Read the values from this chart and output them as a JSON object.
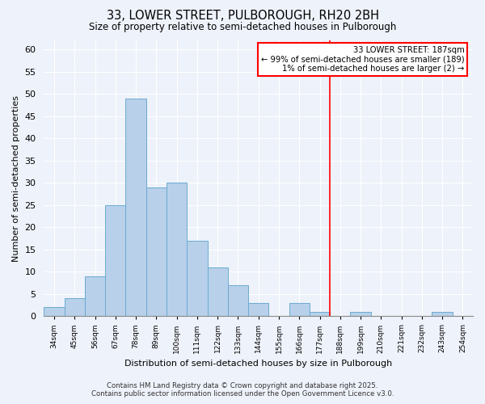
{
  "title": "33, LOWER STREET, PULBOROUGH, RH20 2BH",
  "subtitle": "Size of property relative to semi-detached houses in Pulborough",
  "xlabel": "Distribution of semi-detached houses by size in Pulborough",
  "ylabel": "Number of semi-detached properties",
  "bin_left_edges": [
    34,
    45,
    56,
    67,
    78,
    89,
    100,
    111,
    122,
    133,
    144,
    155,
    166,
    177,
    188,
    199,
    210,
    221,
    232,
    243
  ],
  "bar_heights": [
    2,
    4,
    9,
    25,
    49,
    29,
    30,
    17,
    11,
    7,
    3,
    0,
    3,
    1,
    0,
    1,
    0,
    0,
    0,
    1
  ],
  "bin_width": 11,
  "bar_color": "#b8d0ea",
  "bar_edge_color": "#6aabd2",
  "reference_line_x": 188,
  "reference_line_color": "red",
  "ylim": [
    0,
    62
  ],
  "yticks": [
    0,
    5,
    10,
    15,
    20,
    25,
    30,
    35,
    40,
    45,
    50,
    55,
    60
  ],
  "annotation_title": "33 LOWER STREET: 187sqm",
  "annotation_line1": "← 99% of semi-detached houses are smaller (189)",
  "annotation_line2": "1% of semi-detached houses are larger (2) →",
  "annotation_box_color": "white",
  "annotation_box_edge_color": "red",
  "footer_line1": "Contains HM Land Registry data © Crown copyright and database right 2025.",
  "footer_line2": "Contains public sector information licensed under the Open Government Licence v3.0.",
  "background_color": "#eef2fa",
  "grid_color": "white",
  "tick_labels": [
    "34sqm",
    "45sqm",
    "56sqm",
    "67sqm",
    "78sqm",
    "89sqm",
    "100sqm",
    "111sqm",
    "122sqm",
    "133sqm",
    "144sqm",
    "155sqm",
    "166sqm",
    "177sqm",
    "188sqm",
    "199sqm",
    "210sqm",
    "221sqm",
    "232sqm",
    "243sqm",
    "254sqm"
  ],
  "xmin": 34,
  "xmax": 265
}
